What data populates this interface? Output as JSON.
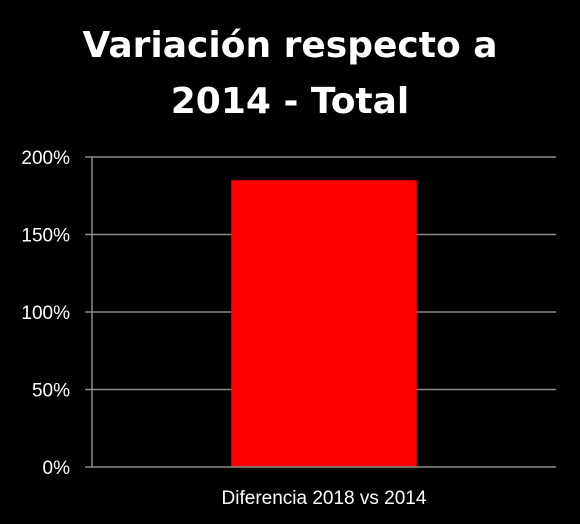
{
  "chart_data": {
    "type": "bar",
    "title_lines": [
      "Variación respecto a",
      "2014 - Total"
    ],
    "categories": [
      "Diferencia 2018 vs 2014"
    ],
    "values": [
      185
    ],
    "value_unit": "%",
    "ylim": [
      0,
      200
    ],
    "yticks": [
      0,
      50,
      100,
      150,
      200
    ],
    "ytick_labels": [
      "0%",
      "50%",
      "100%",
      "150%",
      "200%"
    ],
    "grid": true,
    "legend": "none",
    "colors": {
      "background": "#000000",
      "bar": "#ff0000",
      "gridline": "#8c8c8c",
      "axis": "#8c8c8c",
      "text": "#ffffff"
    }
  }
}
